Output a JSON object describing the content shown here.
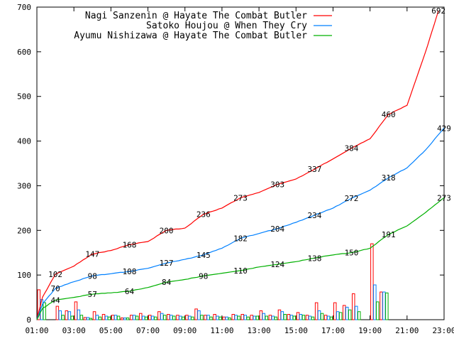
{
  "chart_data": {
    "type": "line",
    "title": "",
    "xlabel": "",
    "ylabel": "",
    "xlim": [
      1,
      23
    ],
    "ylim": [
      0,
      700
    ],
    "grid": false,
    "legend_position": "top-right",
    "x_tick_labels": [
      "01:00",
      "03:00",
      "05:00",
      "07:00",
      "09:00",
      "11:00",
      "13:00",
      "15:00",
      "17:00",
      "19:00",
      "21:00",
      "23:00"
    ],
    "y_tick_labels": [
      "0",
      "100",
      "200",
      "300",
      "400",
      "500",
      "600",
      "700"
    ],
    "series": [
      {
        "name": "Nagi Sanzenin @ Hayate The Combat Butler",
        "color": "#ff0000",
        "cumulative": [
          [
            1,
            0
          ],
          [
            1.3,
            50
          ],
          [
            2,
            102
          ],
          [
            3,
            120
          ],
          [
            4,
            147
          ],
          [
            5,
            155
          ],
          [
            6,
            168
          ],
          [
            7,
            175
          ],
          [
            8,
            200
          ],
          [
            9,
            205
          ],
          [
            10,
            236
          ],
          [
            11,
            250
          ],
          [
            12,
            273
          ],
          [
            13,
            285
          ],
          [
            14,
            303
          ],
          [
            15,
            315
          ],
          [
            16,
            337
          ],
          [
            17,
            360
          ],
          [
            18,
            384
          ],
          [
            19,
            405
          ],
          [
            20,
            460
          ],
          [
            21,
            480
          ],
          [
            22,
            600
          ],
          [
            22.7,
            692
          ]
        ],
        "labels": [
          [
            2,
            102
          ],
          [
            4,
            147
          ],
          [
            6,
            168
          ],
          [
            8,
            200
          ],
          [
            10,
            236
          ],
          [
            12,
            273
          ],
          [
            14,
            303
          ],
          [
            16,
            337
          ],
          [
            18,
            384
          ],
          [
            20,
            460
          ],
          [
            22.7,
            692
          ]
        ],
        "hourly": [
          67,
          0,
          30,
          20,
          40,
          5,
          18,
          12,
          10,
          4,
          10,
          14,
          10,
          18,
          12,
          10,
          10,
          24,
          10,
          12,
          6,
          12,
          12,
          10,
          20,
          10,
          22,
          12,
          16,
          10,
          38,
          10,
          38,
          32,
          58,
          0,
          170,
          62
        ]
      },
      {
        "name": "Satoko Houjou @ When They Cry",
        "color": "#0080ff",
        "cumulative": [
          [
            1,
            0
          ],
          [
            1.3,
            35
          ],
          [
            2,
            70
          ],
          [
            3,
            85
          ],
          [
            4,
            98
          ],
          [
            5,
            103
          ],
          [
            6,
            108
          ],
          [
            7,
            115
          ],
          [
            8,
            127
          ],
          [
            9,
            135
          ],
          [
            10,
            145
          ],
          [
            11,
            160
          ],
          [
            12,
            182
          ],
          [
            13,
            193
          ],
          [
            14,
            204
          ],
          [
            15,
            218
          ],
          [
            16,
            234
          ],
          [
            17,
            250
          ],
          [
            18,
            272
          ],
          [
            19,
            290
          ],
          [
            20,
            318
          ],
          [
            21,
            340
          ],
          [
            22,
            380
          ],
          [
            23,
            429
          ]
        ],
        "labels": [
          [
            2,
            70
          ],
          [
            4,
            98
          ],
          [
            6,
            108
          ],
          [
            8,
            127
          ],
          [
            10,
            145
          ],
          [
            12,
            182
          ],
          [
            14,
            204
          ],
          [
            16,
            234
          ],
          [
            18,
            272
          ],
          [
            20,
            318
          ],
          [
            23,
            429
          ]
        ],
        "hourly": [
          45,
          0,
          20,
          18,
          22,
          5,
          10,
          8,
          10,
          4,
          10,
          8,
          8,
          14,
          10,
          8,
          8,
          20,
          10,
          8,
          6,
          10,
          10,
          8,
          14,
          8,
          18,
          10,
          12,
          8,
          20,
          8,
          18,
          28,
          30,
          0,
          78,
          62
        ]
      },
      {
        "name": "Ayumu Nishizawa @ Hayate The Combat Butler",
        "color": "#00b000",
        "cumulative": [
          [
            1,
            0
          ],
          [
            1.3,
            25
          ],
          [
            2,
            44
          ],
          [
            3,
            50
          ],
          [
            4,
            57
          ],
          [
            5,
            60
          ],
          [
            6,
            64
          ],
          [
            7,
            72
          ],
          [
            8,
            84
          ],
          [
            9,
            90
          ],
          [
            10,
            98
          ],
          [
            11,
            104
          ],
          [
            12,
            110
          ],
          [
            13,
            118
          ],
          [
            14,
            124
          ],
          [
            15,
            130
          ],
          [
            16,
            138
          ],
          [
            17,
            145
          ],
          [
            18,
            150
          ],
          [
            19,
            160
          ],
          [
            20,
            191
          ],
          [
            21,
            210
          ],
          [
            22,
            240
          ],
          [
            23,
            273
          ]
        ],
        "labels": [
          [
            2,
            44
          ],
          [
            4,
            57
          ],
          [
            6,
            64
          ],
          [
            8,
            84
          ],
          [
            10,
            98
          ],
          [
            12,
            110
          ],
          [
            14,
            124
          ],
          [
            16,
            138
          ],
          [
            18,
            150
          ],
          [
            20,
            191
          ],
          [
            23,
            273
          ]
        ],
        "hourly": [
          38,
          0,
          10,
          8,
          10,
          3,
          6,
          6,
          8,
          4,
          8,
          6,
          6,
          10,
          8,
          6,
          6,
          10,
          6,
          6,
          4,
          8,
          6,
          8,
          8,
          6,
          12,
          8,
          10,
          6,
          14,
          6,
          16,
          22,
          18,
          0,
          40,
          60
        ]
      }
    ]
  }
}
